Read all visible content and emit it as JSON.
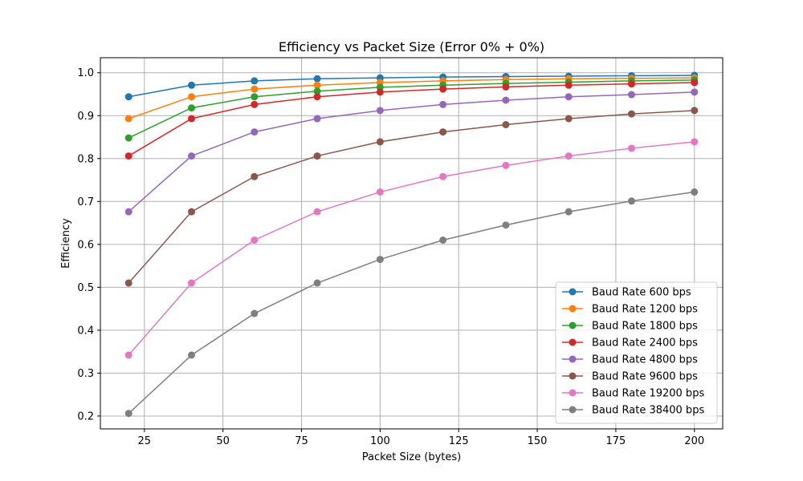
{
  "chart_data": {
    "type": "line",
    "title": "Efficiency vs Packet Size (Error 0% + 0%)",
    "xlabel": "Packet Size (bytes)",
    "ylabel": "Efficiency",
    "xlim": [
      11,
      209
    ],
    "ylim": [
      0.17,
      1.035
    ],
    "xticks": [
      25,
      50,
      75,
      100,
      125,
      150,
      175,
      200
    ],
    "yticks": [
      0.2,
      0.3,
      0.4,
      0.5,
      0.6,
      0.7,
      0.8,
      0.9,
      1.0
    ],
    "grid": true,
    "legend_position": "lower-right",
    "x": [
      20,
      40,
      60,
      80,
      100,
      120,
      140,
      160,
      180,
      200
    ],
    "series": [
      {
        "name": "Baud Rate 600 bps",
        "color": "#1f77b4",
        "values": [
          0.944,
          0.971,
          0.981,
          0.986,
          0.988,
          0.99,
          0.991,
          0.992,
          0.993,
          0.994
        ]
      },
      {
        "name": "Baud Rate 1200 bps",
        "color": "#ff7f0e",
        "values": [
          0.893,
          0.944,
          0.962,
          0.971,
          0.977,
          0.981,
          0.984,
          0.986,
          0.987,
          0.988
        ]
      },
      {
        "name": "Baud Rate 1800 bps",
        "color": "#2ca02c",
        "values": [
          0.848,
          0.918,
          0.944,
          0.957,
          0.966,
          0.971,
          0.975,
          0.978,
          0.981,
          0.983
        ]
      },
      {
        "name": "Baud Rate 2400 bps",
        "color": "#d62728",
        "values": [
          0.806,
          0.893,
          0.926,
          0.944,
          0.955,
          0.962,
          0.967,
          0.971,
          0.974,
          0.977
        ]
      },
      {
        "name": "Baud Rate 4800 bps",
        "color": "#9467bd",
        "values": [
          0.676,
          0.806,
          0.862,
          0.893,
          0.912,
          0.926,
          0.936,
          0.944,
          0.949,
          0.955
        ]
      },
      {
        "name": "Baud Rate 9600 bps",
        "color": "#8c564b",
        "values": [
          0.51,
          0.676,
          0.758,
          0.806,
          0.839,
          0.862,
          0.879,
          0.893,
          0.904,
          0.912
        ]
      },
      {
        "name": "Baud Rate 19200 bps",
        "color": "#e377c2",
        "values": [
          0.342,
          0.51,
          0.61,
          0.676,
          0.722,
          0.758,
          0.784,
          0.806,
          0.824,
          0.839
        ]
      },
      {
        "name": "Baud Rate 38400 bps",
        "color": "#7f7f7f",
        "values": [
          0.206,
          0.342,
          0.439,
          0.51,
          0.565,
          0.61,
          0.645,
          0.676,
          0.701,
          0.722
        ]
      }
    ]
  }
}
